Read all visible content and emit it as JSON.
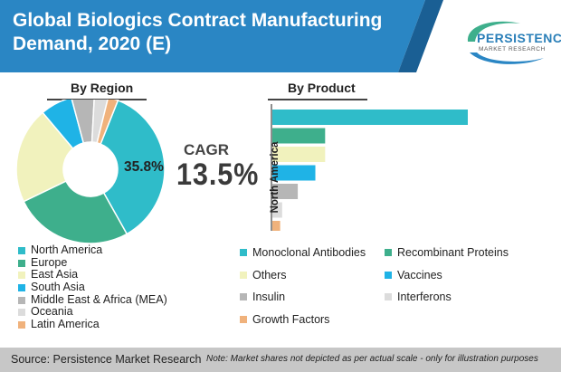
{
  "header": {
    "title": "Global Biologics Contract Manufacturing Demand, 2020 (E)",
    "logo_name": "PERSISTENCE",
    "logo_sub": "MARKET RESEARCH",
    "banner_color": "#2a86c4"
  },
  "region_section": {
    "heading": "By Region",
    "highlight_label": "35.8%"
  },
  "product_section": {
    "heading": "By Product",
    "axis_label": "North America"
  },
  "cagr": {
    "label": "CAGR",
    "value": "13.5%"
  },
  "footer": {
    "source": "Source: Persistence Market Research",
    "note": "Note: Market shares not depicted as per actual scale - only for illustration purposes"
  },
  "chart_data": [
    {
      "type": "pie",
      "title": "By Region",
      "labels": [
        "North America",
        "Europe",
        "East Asia",
        "South Asia",
        "Middle East & Africa (MEA)",
        "Oceania",
        "Latin America"
      ],
      "values": [
        35.8,
        26.0,
        21.0,
        7.0,
        5.0,
        3.0,
        2.2
      ],
      "colors": [
        "#2fbcc9",
        "#3eaf8c",
        "#f1f2bd",
        "#1fb3e6",
        "#b6b6b6",
        "#dcdcdc",
        "#f0b27c"
      ],
      "donut": true
    },
    {
      "type": "bar",
      "orientation": "horizontal",
      "title": "By Product",
      "categories": [
        "Monoclonal Antibodies",
        "Recombinant Proteins",
        "Others",
        "Vaccines",
        "Insulin",
        "Interferons",
        "Growth Factors"
      ],
      "values": [
        100,
        27,
        27,
        22,
        13,
        5,
        4
      ],
      "colors": [
        "#2fbcc9",
        "#3eaf8c",
        "#f1f2bd",
        "#1fb3e6",
        "#b6b6b6",
        "#dcdcdc",
        "#f0b27c"
      ]
    }
  ]
}
